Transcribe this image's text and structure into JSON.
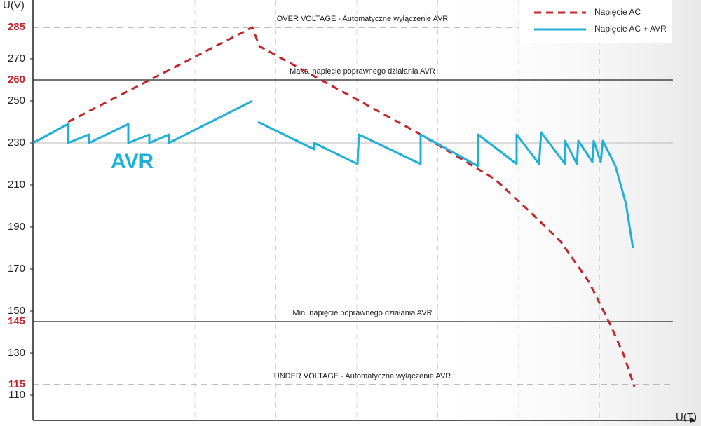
{
  "chart_data": {
    "type": "line",
    "y_label": "U(V)",
    "x_label": "U(T)",
    "annotation": "AVR",
    "ylim": [
      98,
      298
    ],
    "yticks": [
      110,
      130,
      150,
      170,
      190,
      210,
      230,
      250,
      270
    ],
    "xlim": [
      0,
      913
    ],
    "nominal_line": 230,
    "reference_lines": [
      {
        "value": 285,
        "label": "OVER VOLTAGE - Automatyczne wyłączenie AVR",
        "style": "dashed"
      },
      {
        "value": 260,
        "label": "Maks. napięcie poprawnego działania AVR",
        "style": "solid"
      },
      {
        "value": 145,
        "label": "Min. napięcie poprawnego działania AVR",
        "style": "solid"
      },
      {
        "value": 115,
        "label": "UNDER VOLTAGE - Automatyczne wyłączenie AVR",
        "style": "dashed"
      }
    ],
    "legend": "top-right",
    "series": [
      {
        "name": "Napięcie AC",
        "color": "#c0272d",
        "dashed": true,
        "x": [
          50,
          313,
          323,
          548,
          633,
          658,
          713,
          753,
          793,
          823,
          843,
          858
        ],
        "values": [
          240,
          285,
          276,
          235,
          218,
          213,
          196,
          183,
          164,
          144,
          129,
          114
        ]
      },
      {
        "name": "Napięcie AC  + AVR",
        "color": "#1fb0d8",
        "dashed": false,
        "x": [
          0,
          50,
          50,
          80,
          80,
          136,
          136,
          166,
          166,
          194,
          194,
          313,
          317,
          321,
          401,
          401,
          463,
          465,
          553,
          553,
          635,
          635,
          690,
          690,
          722,
          725,
          759,
          759,
          776,
          778,
          798,
          800,
          810,
          813,
          831,
          846,
          856
        ],
        "values": [
          230,
          239,
          230,
          234,
          230,
          239,
          230,
          234,
          230,
          234,
          230,
          250,
          null,
          240,
          227,
          230,
          220,
          234,
          220,
          234,
          219,
          234,
          220,
          234,
          220,
          235,
          220,
          231,
          220,
          231,
          221,
          231,
          221,
          231,
          219,
          201,
          180
        ]
      }
    ]
  }
}
